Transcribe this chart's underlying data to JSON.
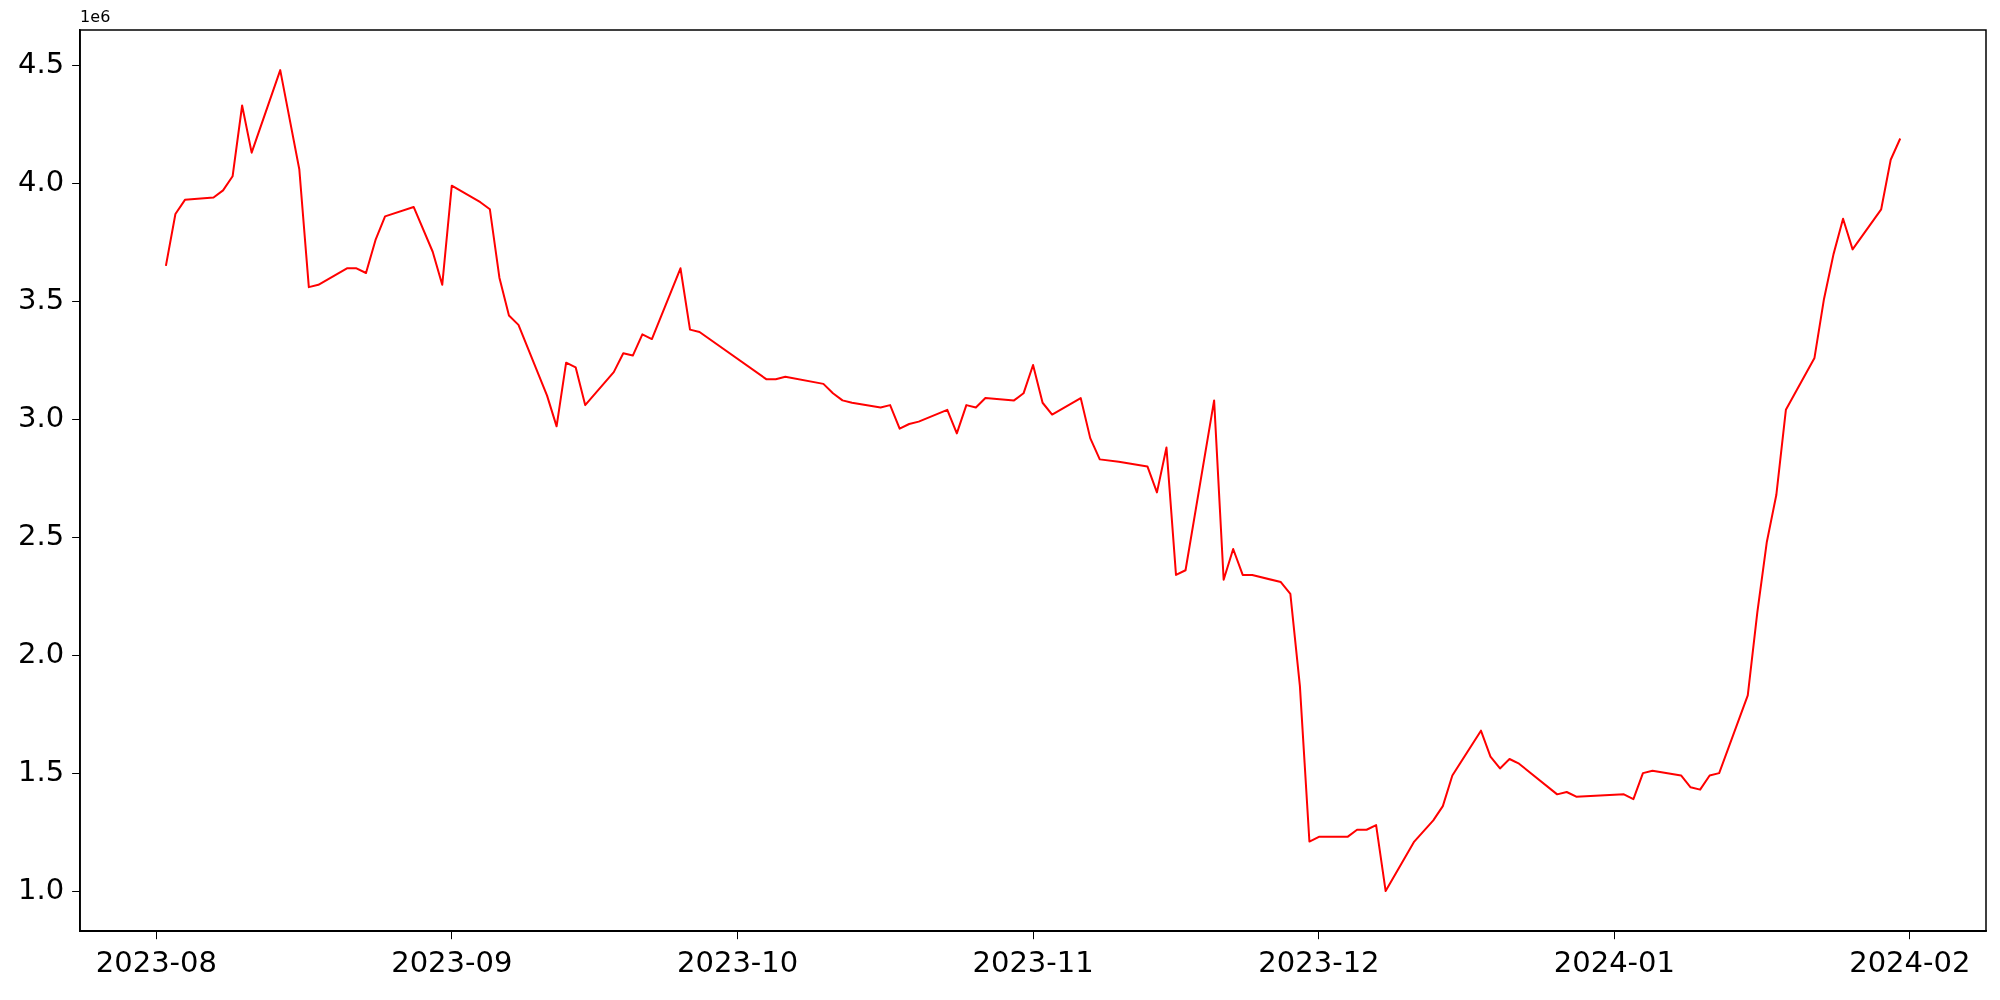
{
  "chart_data": {
    "type": "line",
    "x": [
      "2023-08-02",
      "2023-08-03",
      "2023-08-04",
      "2023-08-07",
      "2023-08-08",
      "2023-08-09",
      "2023-08-10",
      "2023-08-11",
      "2023-08-14",
      "2023-08-16",
      "2023-08-17",
      "2023-08-18",
      "2023-08-21",
      "2023-08-22",
      "2023-08-23",
      "2023-08-24",
      "2023-08-25",
      "2023-08-28",
      "2023-08-30",
      "2023-08-31",
      "2023-09-01",
      "2023-09-04",
      "2023-09-05",
      "2023-09-06",
      "2023-09-07",
      "2023-09-08",
      "2023-09-11",
      "2023-09-12",
      "2023-09-13",
      "2023-09-14",
      "2023-09-15",
      "2023-09-18",
      "2023-09-19",
      "2023-09-20",
      "2023-09-21",
      "2023-09-22",
      "2023-09-25",
      "2023-09-26",
      "2023-09-27",
      "2023-10-04",
      "2023-10-05",
      "2023-10-06",
      "2023-10-10",
      "2023-10-11",
      "2023-10-12",
      "2023-10-13",
      "2023-10-16",
      "2023-10-17",
      "2023-10-18",
      "2023-10-19",
      "2023-10-20",
      "2023-10-23",
      "2023-10-24",
      "2023-10-25",
      "2023-10-26",
      "2023-10-27",
      "2023-10-30",
      "2023-10-31",
      "2023-11-01",
      "2023-11-02",
      "2023-11-03",
      "2023-11-06",
      "2023-11-07",
      "2023-11-08",
      "2023-11-10",
      "2023-11-13",
      "2023-11-14",
      "2023-11-15",
      "2023-11-16",
      "2023-11-17",
      "2023-11-20",
      "2023-11-21",
      "2023-11-22",
      "2023-11-23",
      "2023-11-24",
      "2023-11-27",
      "2023-11-28",
      "2023-11-29",
      "2023-11-30",
      "2023-12-01",
      "2023-12-04",
      "2023-12-05",
      "2023-12-06",
      "2023-12-07",
      "2023-12-08",
      "2023-12-11",
      "2023-12-13",
      "2023-12-14",
      "2023-12-15",
      "2023-12-18",
      "2023-12-19",
      "2023-12-20",
      "2023-12-21",
      "2023-12-22",
      "2023-12-26",
      "2023-12-27",
      "2023-12-28",
      "2024-01-02",
      "2024-01-03",
      "2024-01-04",
      "2024-01-05",
      "2024-01-08",
      "2024-01-09",
      "2024-01-10",
      "2024-01-11",
      "2024-01-12",
      "2024-01-15",
      "2024-01-16",
      "2024-01-17",
      "2024-01-18",
      "2024-01-19",
      "2024-01-22",
      "2024-01-23",
      "2024-01-24",
      "2024-01-25",
      "2024-01-26",
      "2024-01-29",
      "2024-01-30",
      "2024-01-31"
    ],
    "series": [
      {
        "color": "#ff0000",
        "values": [
          3.65,
          3.87,
          3.93,
          3.94,
          3.97,
          4.03,
          4.33,
          4.13,
          4.48,
          4.06,
          3.56,
          3.57,
          3.64,
          3.64,
          3.62,
          3.76,
          3.86,
          3.9,
          3.71,
          3.57,
          3.99,
          3.92,
          3.89,
          3.6,
          3.44,
          3.4,
          3.1,
          2.97,
          3.24,
          3.22,
          3.06,
          3.2,
          3.28,
          3.27,
          3.36,
          3.34,
          3.64,
          3.38,
          3.37,
          3.17,
          3.17,
          3.18,
          3.15,
          3.11,
          3.08,
          3.07,
          3.05,
          3.06,
          2.96,
          2.98,
          2.99,
          3.04,
          2.94,
          3.06,
          3.05,
          3.09,
          3.08,
          3.11,
          3.23,
          3.07,
          3.02,
          3.09,
          2.92,
          2.83,
          2.82,
          2.8,
          2.69,
          2.88,
          2.34,
          2.36,
          3.08,
          2.32,
          2.45,
          2.34,
          2.34,
          2.31,
          2.26,
          1.87,
          1.21,
          1.23,
          1.23,
          1.26,
          1.26,
          1.28,
          1.0,
          1.21,
          1.3,
          1.36,
          1.49,
          1.68,
          1.57,
          1.52,
          1.56,
          1.54,
          1.41,
          1.42,
          1.4,
          1.41,
          1.39,
          1.5,
          1.51,
          1.49,
          1.44,
          1.43,
          1.49,
          1.5,
          1.83,
          2.18,
          2.48,
          2.68,
          3.04,
          3.26,
          3.51,
          3.7,
          3.85,
          3.72,
          3.89,
          4.1,
          4.19
        ]
      }
    ],
    "xlim": [
      "2023-07-24",
      "2024-02-09"
    ],
    "xticks": [
      {
        "value": "2023-08-01",
        "label": "2023-08"
      },
      {
        "value": "2023-09-01",
        "label": "2023-09"
      },
      {
        "value": "2023-10-01",
        "label": "2023-10"
      },
      {
        "value": "2023-11-01",
        "label": "2023-11"
      },
      {
        "value": "2023-12-01",
        "label": "2023-12"
      },
      {
        "value": "2024-01-01",
        "label": "2024-01"
      },
      {
        "value": "2024-02-01",
        "label": "2024-02"
      }
    ],
    "ylim": [
      0.83,
      4.65
    ],
    "yticks": [
      {
        "value": 1,
        "label": "1.0"
      },
      1.5,
      {
        "value": 2,
        "label": "2.0"
      },
      2.5,
      {
        "value": 3,
        "label": "3.0"
      },
      3.5,
      {
        "value": 4,
        "label": "4.0"
      },
      4.5
    ],
    "annotations": [
      "1e6"
    ]
  }
}
